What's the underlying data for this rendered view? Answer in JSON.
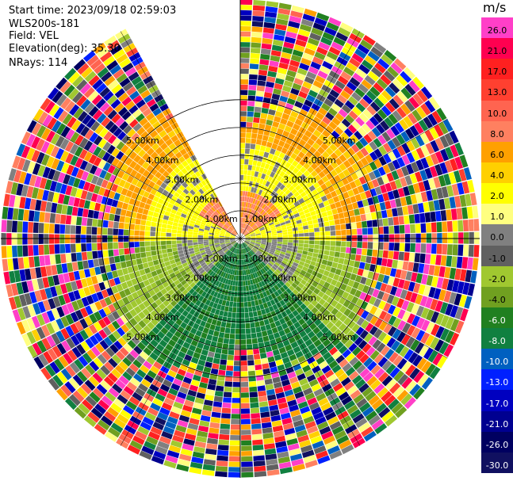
{
  "header": {
    "start_time": "Start time: 2023/09/18 02:59:03",
    "instrument": "WLS200s-181",
    "field": "Field: VEL",
    "elevation": "Elevation(deg): 35.30",
    "nrays": "NRays: 114"
  },
  "colorbar": {
    "unit": "m/s",
    "levels": [
      "26.0",
      "21.0",
      "17.0",
      "13.0",
      "10.0",
      "8.0",
      "6.0",
      "4.0",
      "2.0",
      "1.0",
      "0.0",
      "-1.0",
      "-2.0",
      "-4.0",
      "-6.0",
      "-8.0",
      "-10.0",
      "-13.0",
      "-17.0",
      "-21.0",
      "-26.0",
      "-30.0"
    ],
    "colors": [
      "#ff3fc8",
      "#ff0050",
      "#ff2020",
      "#ff4030",
      "#ff6450",
      "#ff8060",
      "#ffa000",
      "#ffd000",
      "#ffff00",
      "#ffff80",
      "#808080",
      "#606060",
      "#a0c830",
      "#70a020",
      "#208020",
      "#108040",
      "#0060c0",
      "#0020ff",
      "#0000c0",
      "#000090",
      "#000060",
      "#101060"
    ]
  },
  "chart_data": {
    "type": "ppi",
    "title": "",
    "field": "VEL",
    "units": "m/s",
    "elevation_deg": 35.3,
    "n_rays": 114,
    "range_rings_km": [
      1.0,
      2.0,
      3.0,
      4.0,
      5.0
    ],
    "ring_labels": [
      "1.00km",
      "2.00km",
      "3.00km",
      "4.00km",
      "5.00km"
    ],
    "data_gap_azimuth_deg": [
      330,
      360
    ],
    "velocity_pattern": {
      "north_sector_inner": 3.0,
      "east_west_inner": 2.5,
      "south_sector_inner": -5.0,
      "southeast_southwest_inner": -2.0,
      "outer_range": "noise"
    }
  }
}
